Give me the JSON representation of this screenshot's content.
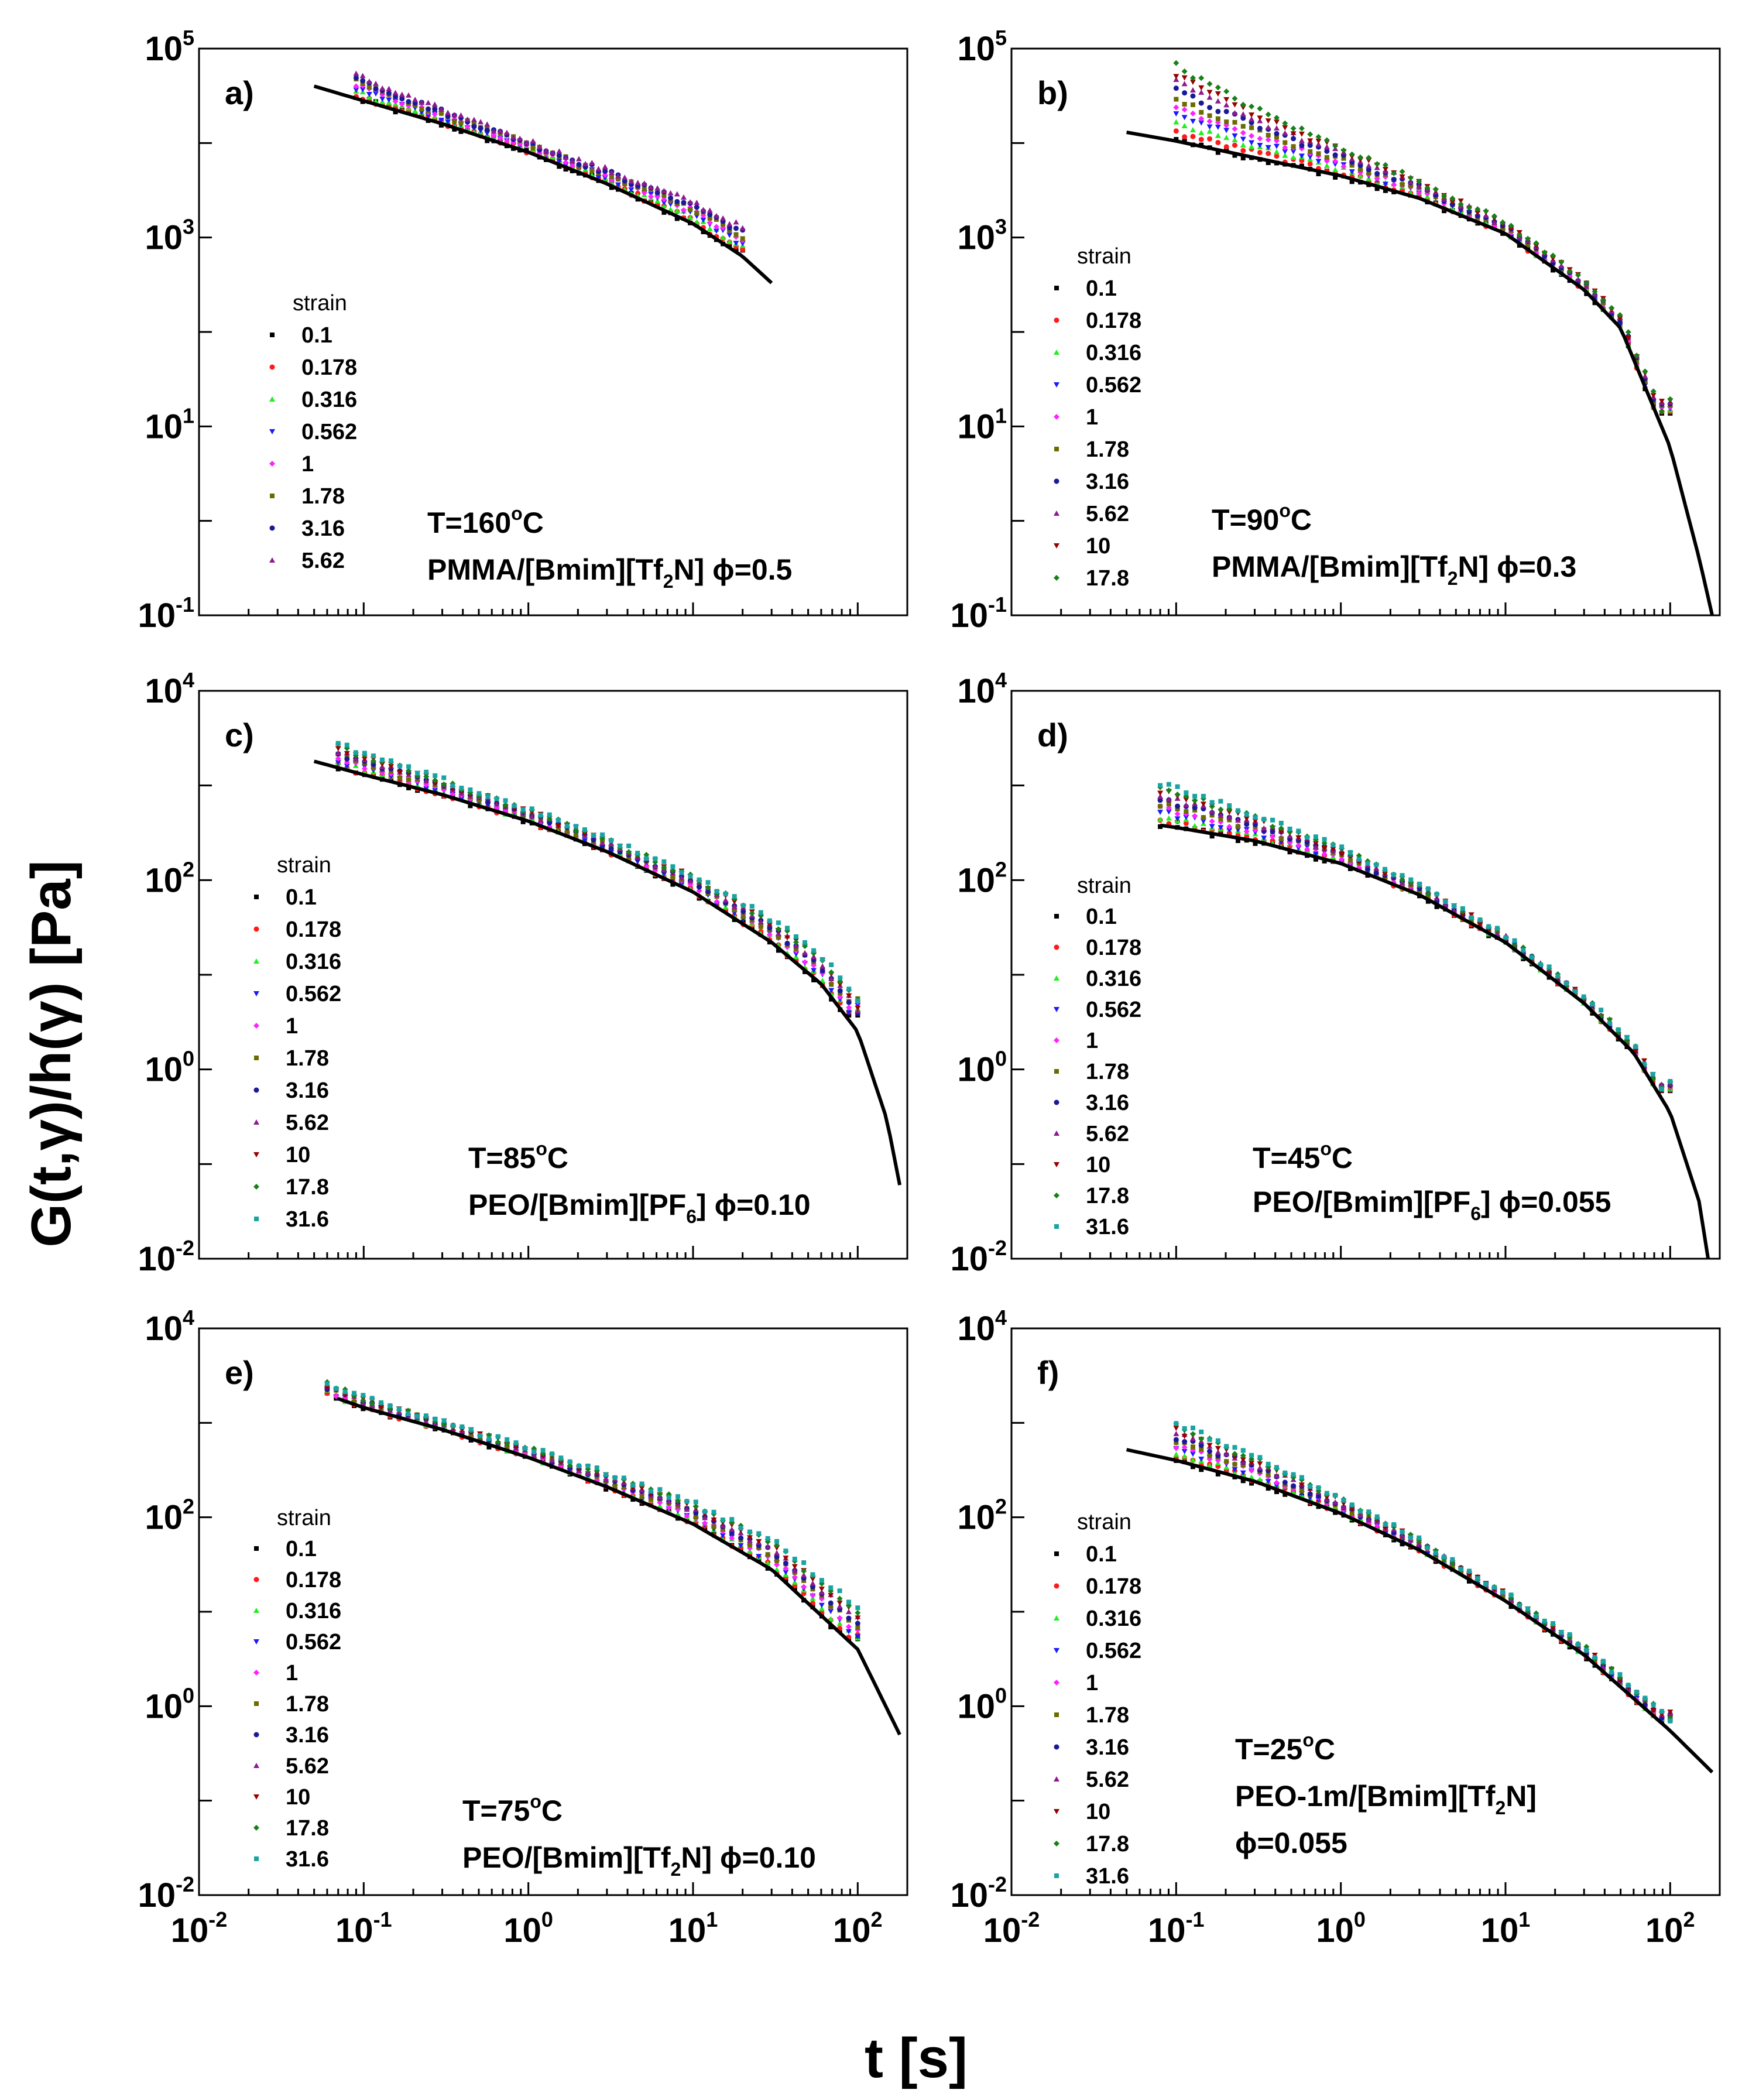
{
  "chart_data": {
    "type": "scatter",
    "scale": "log-log",
    "xlabel": "t [s]",
    "ylabel": "G(t,γ)/h(γ) [Pa]",
    "x_range": [
      0.01,
      200
    ],
    "x_ticks": [
      {
        "base": "10",
        "exp": "-2"
      },
      {
        "base": "10",
        "exp": "-1"
      },
      {
        "base": "10",
        "exp": "0"
      },
      {
        "base": "10",
        "exp": "1"
      },
      {
        "base": "10",
        "exp": "2"
      }
    ],
    "legend_title": "strain",
    "strain_colors": {
      "0.1": "#000000",
      "0.178": "#ff1a1a",
      "0.316": "#22ee22",
      "0.562": "#1a1aff",
      "1": "#ff22ff",
      "1.78": "#6b6b00",
      "3.16": "#1a1a99",
      "5.62": "#8e1a8e",
      "10": "#990000",
      "17.8": "#178017",
      "31.6": "#19a3a3"
    },
    "panels": [
      {
        "label": "a)",
        "temperature_base": "T=160",
        "temperature_sup": "o",
        "temperature_unit": "C",
        "material_pre": "PMMA/[Bmim][Tf",
        "material_sub": "2",
        "material_post": "N] ϕ=0.5",
        "material_line2": "",
        "y_range": [
          0.1,
          100000
        ],
        "y_ticks": [
          {
            "base": "10",
            "exp": "5"
          },
          {
            "base": "10",
            "exp": "3"
          },
          {
            "base": "10",
            "exp": "1"
          },
          {
            "base": "10",
            "exp": "-1"
          }
        ],
        "strains": [
          "0.1",
          "0.178",
          "0.316",
          "0.562",
          "1",
          "1.78",
          "3.16",
          "5.62"
        ],
        "fit_curve": {
          "x": [
            0.05,
            0.1,
            0.3,
            1,
            3,
            10,
            20,
            30
          ],
          "y": [
            40000,
            28000,
            16000,
            8000,
            3700,
            1400,
            630,
            330
          ]
        },
        "data_x_range": [
          0.09,
          20
        ],
        "series_end_spread": 0.3,
        "series_start_spread": 0.25
      },
      {
        "label": "b)",
        "temperature_base": "T=90",
        "temperature_sup": "o",
        "temperature_unit": "C",
        "material_pre": "PMMA/[Bmim][Tf",
        "material_sub": "2",
        "material_post": "N] ϕ=0.3",
        "material_line2": "",
        "y_range": [
          0.1,
          100000
        ],
        "y_ticks": [
          {
            "base": "10",
            "exp": "5"
          },
          {
            "base": "10",
            "exp": "3"
          },
          {
            "base": "10",
            "exp": "1"
          },
          {
            "base": "10",
            "exp": "-1"
          }
        ],
        "strains": [
          "0.1",
          "0.178",
          "0.316",
          "0.562",
          "1",
          "1.78",
          "3.16",
          "5.62",
          "10",
          "17.8"
        ],
        "fit_curve": {
          "x": [
            0.05,
            0.1,
            0.3,
            1,
            3,
            10,
            30,
            50,
            100,
            150,
            180
          ],
          "y": [
            13000,
            10500,
            7000,
            4500,
            2600,
            1100,
            280,
            110,
            6,
            0.4,
            0.1
          ]
        },
        "data_x_range": [
          0.1,
          100
        ],
        "series_end_spread": 0.15,
        "series_start_spread": 0.8
      },
      {
        "label": "c)",
        "temperature_base": "T=85",
        "temperature_sup": "o",
        "temperature_unit": "C",
        "material_pre": "PEO/[Bmim][PF",
        "material_sub": "6",
        "material_post": "] ϕ=0.10",
        "material_line2": "",
        "y_range": [
          0.01,
          10000
        ],
        "y_ticks": [
          {
            "base": "10",
            "exp": "4"
          },
          {
            "base": "10",
            "exp": "2"
          },
          {
            "base": "10",
            "exp": "0"
          },
          {
            "base": "10",
            "exp": "-2"
          }
        ],
        "strains": [
          "0.1",
          "0.178",
          "0.316",
          "0.562",
          "1",
          "1.78",
          "3.16",
          "5.62",
          "10",
          "17.8",
          "31.6"
        ],
        "fit_curve": {
          "x": [
            0.05,
            0.1,
            0.3,
            1,
            3,
            10,
            30,
            60,
            100,
            150,
            180
          ],
          "y": [
            1800,
            1300,
            800,
            420,
            200,
            75,
            22,
            8,
            2.5,
            0.3,
            0.06
          ]
        },
        "data_x_range": [
          0.07,
          100
        ],
        "series_end_spread": 0.35,
        "series_start_spread": 0.25
      },
      {
        "label": "d)",
        "temperature_base": "T=45",
        "temperature_sup": "o",
        "temperature_unit": "C",
        "material_pre": "PEO/[Bmim][PF",
        "material_sub": "6",
        "material_post": "] ϕ=0.055",
        "material_line2": "",
        "y_range": [
          0.01,
          10000
        ],
        "y_ticks": [
          {
            "base": "10",
            "exp": "4"
          },
          {
            "base": "10",
            "exp": "2"
          },
          {
            "base": "10",
            "exp": "0"
          },
          {
            "base": "10",
            "exp": "-2"
          }
        ],
        "strains": [
          "0.1",
          "0.178",
          "0.316",
          "0.562",
          "1",
          "1.78",
          "3.16",
          "5.62",
          "10",
          "17.8",
          "31.6"
        ],
        "fit_curve": {
          "x": [
            0.08,
            0.1,
            0.3,
            1,
            3,
            10,
            30,
            60,
            100,
            150,
            170
          ],
          "y": [
            380,
            360,
            260,
            150,
            70,
            22,
            5,
            1.5,
            0.35,
            0.04,
            0.01
          ]
        },
        "data_x_range": [
          0.08,
          100
        ],
        "series_end_spread": 0.1,
        "series_start_spread": 0.45
      },
      {
        "label": "e)",
        "temperature_base": "T=75",
        "temperature_sup": "o",
        "temperature_unit": "C",
        "material_pre": "PEO/[Bmim][Tf",
        "material_sub": "2",
        "material_post": "N] ϕ=0.10",
        "material_line2": "",
        "y_range": [
          0.01,
          10000
        ],
        "y_ticks": [
          {
            "base": "10",
            "exp": "4"
          },
          {
            "base": "10",
            "exp": "2"
          },
          {
            "base": "10",
            "exp": "0"
          },
          {
            "base": "10",
            "exp": "-2"
          }
        ],
        "strains": [
          "0.1",
          "0.178",
          "0.316",
          "0.562",
          "1",
          "1.78",
          "3.16",
          "5.62",
          "10",
          "17.8",
          "31.6"
        ],
        "fit_curve": {
          "x": [
            0.07,
            0.1,
            0.3,
            1,
            3,
            10,
            30,
            100,
            180
          ],
          "y": [
            1800,
            1450,
            850,
            430,
            210,
            85,
            28,
            4,
            0.5
          ]
        },
        "data_x_range": [
          0.06,
          100
        ],
        "series_end_spread": 0.45,
        "series_start_spread": 0.12
      },
      {
        "label": "f)",
        "temperature_base": "T=25",
        "temperature_sup": "o",
        "temperature_unit": "C",
        "material_pre": "PEO-1m/[Bmim][Tf",
        "material_sub": "2",
        "material_post": "N]",
        "material_line2": "ϕ=0.055",
        "y_range": [
          0.01,
          10000
        ],
        "y_ticks": [
          {
            "base": "10",
            "exp": "4"
          },
          {
            "base": "10",
            "exp": "2"
          },
          {
            "base": "10",
            "exp": "0"
          },
          {
            "base": "10",
            "exp": "-2"
          }
        ],
        "strains": [
          "0.1",
          "0.178",
          "0.316",
          "0.562",
          "1",
          "1.78",
          "3.16",
          "5.62",
          "10",
          "17.8",
          "31.6"
        ],
        "fit_curve": {
          "x": [
            0.05,
            0.1,
            0.3,
            1,
            3,
            10,
            30,
            100,
            180
          ],
          "y": [
            520,
            400,
            240,
            110,
            45,
            13,
            3.5,
            0.55,
            0.2
          ]
        },
        "data_x_range": [
          0.1,
          100
        ],
        "series_end_spread": 0.12,
        "series_start_spread": 0.4
      }
    ]
  }
}
